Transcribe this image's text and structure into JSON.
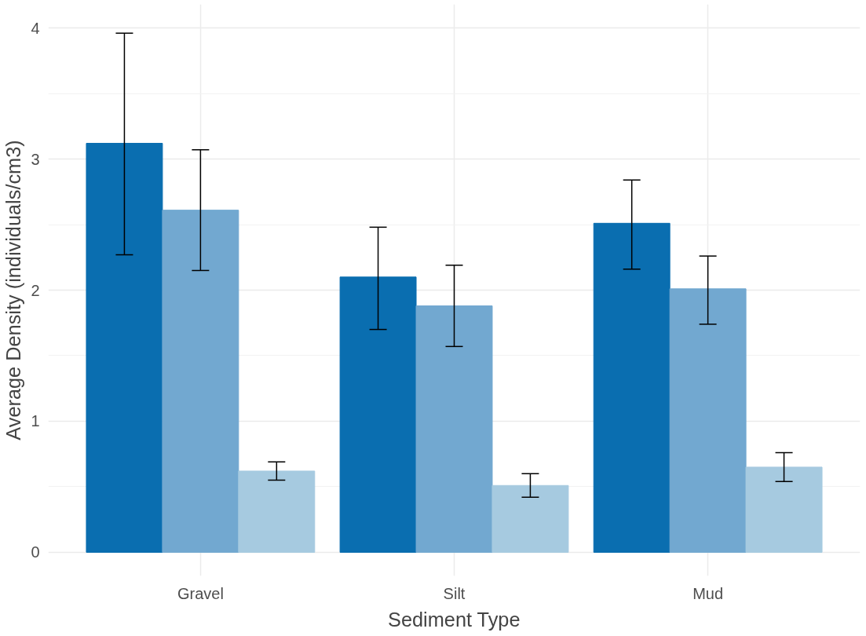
{
  "chart_data": {
    "type": "bar",
    "xlabel": "Sediment Type",
    "ylabel": "Average Density (individuals/cm3)",
    "categories": [
      "Gravel",
      "Silt",
      "Mud"
    ],
    "series": [
      {
        "color": "#0a6eb0",
        "values": [
          3.12,
          2.1,
          2.51
        ],
        "errors": [
          [
            2.27,
            3.96
          ],
          [
            1.7,
            2.48
          ],
          [
            2.16,
            2.84
          ]
        ]
      },
      {
        "color": "#72a8d0",
        "values": [
          2.61,
          1.88,
          2.01
        ],
        "errors": [
          [
            2.15,
            3.07
          ],
          [
            1.57,
            2.19
          ],
          [
            1.74,
            2.26
          ]
        ]
      },
      {
        "color": "#a6cae0",
        "values": [
          0.62,
          0.51,
          0.65
        ],
        "errors": [
          [
            0.55,
            0.69
          ],
          [
            0.42,
            0.6
          ],
          [
            0.54,
            0.76
          ]
        ]
      }
    ],
    "ylim": [
      -0.18,
      4.18
    ],
    "yticks": [
      0,
      1,
      2,
      3,
      4
    ],
    "grid": true
  }
}
